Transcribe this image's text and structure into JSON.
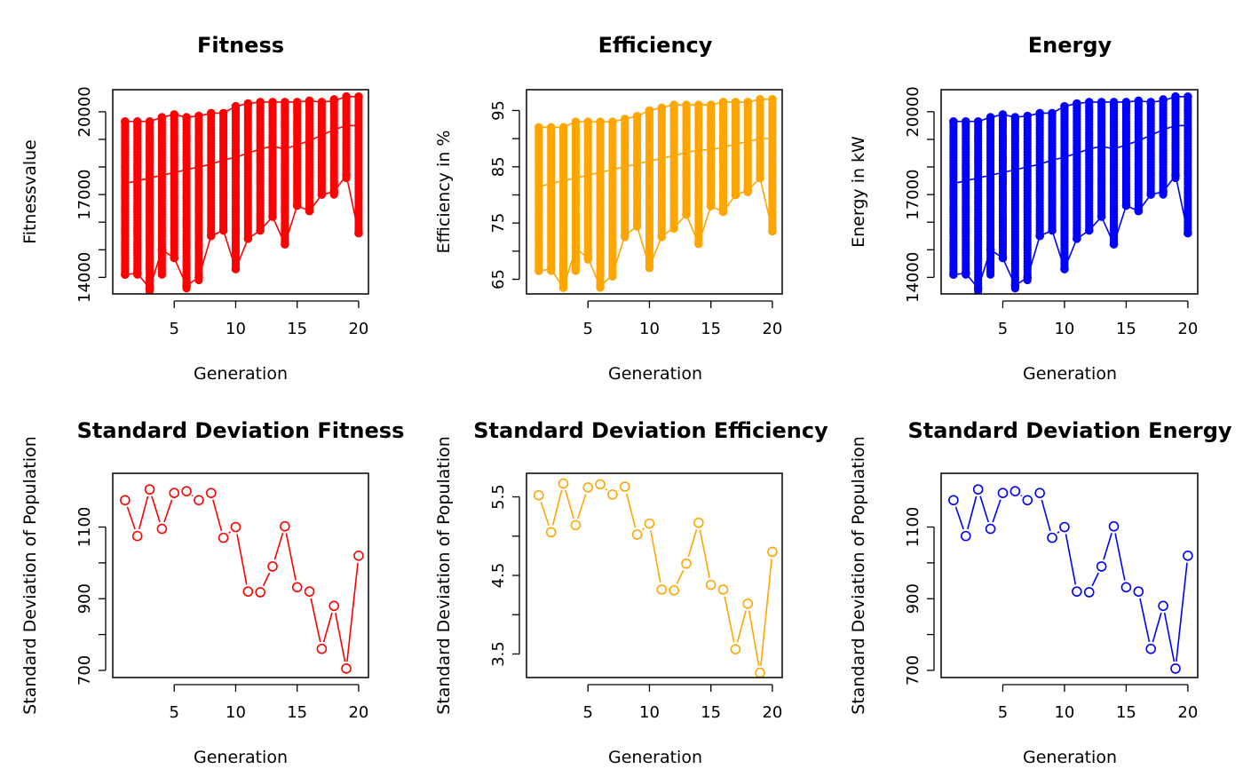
{
  "chart_data": [
    {
      "type": "scatter",
      "title": "Fitness",
      "xlabel": "Generation",
      "ylabel": "Fitnessvalue",
      "color": "#ff0000",
      "xlim": [
        0,
        20.8
      ],
      "ylim": [
        13400,
        20800
      ],
      "xticks": [
        5,
        10,
        15,
        20
      ],
      "yticks": [
        14000,
        17000,
        20000
      ],
      "yminor": [
        15000,
        16000,
        18000,
        19000
      ],
      "ylabels": [
        "14000",
        "17000",
        "20000"
      ],
      "grid": false,
      "column_ranges": [
        [
          14100,
          19700
        ],
        [
          14100,
          19700
        ],
        [
          13500,
          19700
        ],
        [
          14100,
          19800
        ],
        [
          14800,
          19900
        ],
        [
          13600,
          19800
        ],
        [
          13900,
          19800
        ],
        [
          15500,
          19900
        ],
        [
          15700,
          20000
        ],
        [
          14300,
          20200
        ],
        [
          15400,
          20300
        ],
        [
          15700,
          20300
        ],
        [
          16200,
          20300
        ],
        [
          15200,
          20300
        ],
        [
          16600,
          20400
        ],
        [
          16500,
          20400
        ],
        [
          17000,
          20400
        ],
        [
          17000,
          20500
        ],
        [
          17600,
          20600
        ],
        [
          15600,
          20600
        ]
      ],
      "series": [
        {
          "line": "max",
          "values": [
            19650,
            19650,
            19650,
            19800,
            19900,
            19800,
            19850,
            19950,
            19950,
            20200,
            20300,
            20350,
            20350,
            20350,
            20350,
            20400,
            20350,
            20400,
            20550,
            20550
          ]
        },
        {
          "line": "mean",
          "values": [
            17400,
            17500,
            17600,
            17700,
            17800,
            17900,
            18000,
            18100,
            18250,
            18350,
            18500,
            18650,
            18750,
            18650,
            18800,
            18950,
            19150,
            19350,
            19500,
            19500
          ]
        },
        {
          "line": "min",
          "values": [
            14100,
            14150,
            13600,
            15000,
            14700,
            13700,
            14000,
            15500,
            15700,
            14300,
            15400,
            15700,
            16200,
            15200,
            16600,
            16400,
            17000,
            17100,
            17700,
            15600
          ]
        }
      ]
    },
    {
      "type": "scatter",
      "title": "Efficiency",
      "xlabel": "Generation",
      "ylabel": "Efficiency in %",
      "color": "#ffa500",
      "xlim": [
        0,
        20.8
      ],
      "ylim": [
        62.4,
        98.7
      ],
      "xticks": [
        5,
        10,
        15,
        20
      ],
      "yticks": [
        65,
        75,
        85,
        95
      ],
      "yminor": [
        70,
        80,
        90
      ],
      "ylabels": [
        "65",
        "75",
        "85",
        "95"
      ],
      "grid": false,
      "column_ranges": [
        [
          66.5,
          92
        ],
        [
          66.5,
          92
        ],
        [
          63.5,
          92
        ],
        [
          66.5,
          93
        ],
        [
          68.5,
          93
        ],
        [
          63.5,
          93
        ],
        [
          65.5,
          93
        ],
        [
          72.5,
          93.5
        ],
        [
          74.5,
          94
        ],
        [
          67,
          95
        ],
        [
          72.5,
          95.5
        ],
        [
          74,
          96
        ],
        [
          76.5,
          96
        ],
        [
          71.5,
          96
        ],
        [
          78,
          96
        ],
        [
          77,
          96.5
        ],
        [
          80,
          96.5
        ],
        [
          80.5,
          96.5
        ],
        [
          83,
          97
        ],
        [
          73.5,
          97
        ]
      ],
      "series": [
        {
          "line": "max",
          "values": [
            92,
            92,
            92,
            93,
            93,
            93,
            93,
            93.5,
            94,
            95,
            95.5,
            96,
            96,
            96,
            96,
            96.5,
            96.5,
            96.5,
            97,
            97
          ]
        },
        {
          "line": "mean",
          "values": [
            81.5,
            82,
            82.5,
            83,
            83.5,
            84,
            84.5,
            85,
            85.5,
            86,
            86.5,
            87,
            87.5,
            88,
            88,
            88.5,
            89,
            89.5,
            90,
            90
          ]
        },
        {
          "line": "min",
          "values": [
            66.5,
            66.8,
            63.5,
            70.5,
            68.8,
            63.7,
            65.8,
            72.8,
            74.4,
            67.2,
            72.6,
            74.2,
            76.5,
            71.3,
            78,
            77,
            80,
            80.8,
            83,
            73.6
          ]
        }
      ]
    },
    {
      "type": "scatter",
      "title": "Energy",
      "xlabel": "Generation",
      "ylabel": "Energy in kW",
      "color": "#0000ff",
      "xlim": [
        0,
        20.8
      ],
      "ylim": [
        13400,
        20800
      ],
      "xticks": [
        5,
        10,
        15,
        20
      ],
      "yticks": [
        14000,
        17000,
        20000
      ],
      "yminor": [
        15000,
        16000,
        18000,
        19000
      ],
      "ylabels": [
        "14000",
        "17000",
        "20000"
      ],
      "grid": false,
      "column_ranges": [
        [
          14100,
          19700
        ],
        [
          14100,
          19700
        ],
        [
          13500,
          19700
        ],
        [
          14100,
          19800
        ],
        [
          14800,
          19900
        ],
        [
          13600,
          19800
        ],
        [
          13900,
          19800
        ],
        [
          15500,
          19900
        ],
        [
          15700,
          20000
        ],
        [
          14300,
          20200
        ],
        [
          15400,
          20300
        ],
        [
          15700,
          20300
        ],
        [
          16200,
          20300
        ],
        [
          15200,
          20300
        ],
        [
          16600,
          20400
        ],
        [
          16500,
          20400
        ],
        [
          17000,
          20400
        ],
        [
          17000,
          20500
        ],
        [
          17600,
          20600
        ],
        [
          15600,
          20600
        ]
      ],
      "series": [
        {
          "line": "max",
          "values": [
            19650,
            19650,
            19650,
            19800,
            19900,
            19800,
            19850,
            19950,
            19950,
            20200,
            20300,
            20350,
            20350,
            20350,
            20350,
            20400,
            20350,
            20400,
            20550,
            20550
          ]
        },
        {
          "line": "mean",
          "values": [
            17400,
            17500,
            17600,
            17700,
            17800,
            17900,
            18000,
            18100,
            18250,
            18350,
            18500,
            18650,
            18750,
            18650,
            18800,
            18950,
            19150,
            19350,
            19500,
            19500
          ]
        },
        {
          "line": "min",
          "values": [
            14100,
            14150,
            13600,
            15000,
            14700,
            13700,
            14000,
            15500,
            15700,
            14300,
            15400,
            15700,
            16200,
            15200,
            16600,
            16400,
            17000,
            17100,
            17700,
            15600
          ]
        }
      ]
    },
    {
      "type": "line",
      "title": "Standard Deviation Fitness",
      "xlabel": "Generation",
      "ylabel": "Standard Deviation of Population",
      "color": "#ff0000",
      "xlim": [
        0,
        20.8
      ],
      "ylim": [
        680,
        1250
      ],
      "xticks": [
        5,
        10,
        15,
        20
      ],
      "yticks": [
        700,
        900,
        1100
      ],
      "yminor": [
        800,
        1000
      ],
      "ylabels": [
        "700",
        "900",
        "1100"
      ],
      "grid": false,
      "x": [
        1,
        2,
        3,
        4,
        5,
        6,
        7,
        8,
        9,
        10,
        11,
        12,
        13,
        14,
        15,
        16,
        17,
        18,
        19,
        20
      ],
      "series": [
        {
          "values": [
            1175,
            1075,
            1205,
            1095,
            1195,
            1200,
            1175,
            1195,
            1070,
            1100,
            920,
            918,
            990,
            1102,
            932,
            920,
            760,
            880,
            705,
            1020
          ]
        }
      ]
    },
    {
      "type": "line",
      "title": "Standard Deviation Efficiency",
      "xlabel": "Generation",
      "ylabel": "Standard Deviation of Population",
      "color": "#ffa500",
      "xlim": [
        0,
        20.8
      ],
      "ylim": [
        3.2,
        5.8
      ],
      "xticks": [
        5,
        10,
        15,
        20
      ],
      "yticks": [
        3.5,
        4.5,
        5.5
      ],
      "yminor": [
        4.0,
        5.0
      ],
      "ylabels": [
        "3.5",
        "4.5",
        "5.5"
      ],
      "grid": false,
      "x": [
        1,
        2,
        3,
        4,
        5,
        6,
        7,
        8,
        9,
        10,
        11,
        12,
        13,
        14,
        15,
        16,
        17,
        18,
        19,
        20
      ],
      "series": [
        {
          "values": [
            5.52,
            5.05,
            5.67,
            5.14,
            5.62,
            5.66,
            5.53,
            5.63,
            5.02,
            5.16,
            4.32,
            4.31,
            4.65,
            5.17,
            4.38,
            4.32,
            3.56,
            4.14,
            3.26,
            4.8
          ]
        }
      ]
    },
    {
      "type": "line",
      "title": "Standard Deviation Energy",
      "xlabel": "Generation",
      "ylabel": "Standard Deviation of Population",
      "color": "#0000ff",
      "xlim": [
        0,
        20.8
      ],
      "ylim": [
        680,
        1250
      ],
      "xticks": [
        5,
        10,
        15,
        20
      ],
      "yticks": [
        700,
        900,
        1100
      ],
      "yminor": [
        800,
        1000
      ],
      "ylabels": [
        "700",
        "900",
        "1100"
      ],
      "grid": false,
      "x": [
        1,
        2,
        3,
        4,
        5,
        6,
        7,
        8,
        9,
        10,
        11,
        12,
        13,
        14,
        15,
        16,
        17,
        18,
        19,
        20
      ],
      "series": [
        {
          "values": [
            1175,
            1075,
            1205,
            1095,
            1195,
            1200,
            1175,
            1195,
            1070,
            1100,
            920,
            918,
            990,
            1102,
            932,
            920,
            760,
            880,
            705,
            1020
          ]
        }
      ]
    }
  ]
}
